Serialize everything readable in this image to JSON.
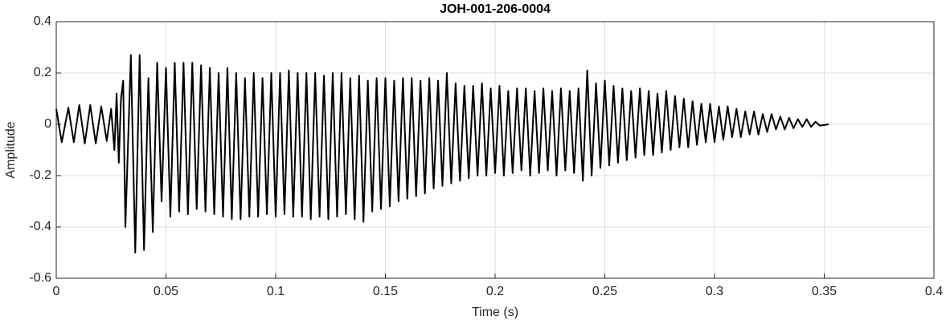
{
  "chart_data": {
    "type": "line",
    "title": "JOH-001-206-0004",
    "x_label": "Time (s)",
    "y_label": "Amplitude",
    "color": "#000000",
    "grid": true,
    "xlim": [
      0,
      0.4
    ],
    "ylim": [
      -0.6,
      0.4
    ],
    "xticks": [
      0,
      0.05,
      0.1,
      0.15,
      0.2,
      0.25,
      0.3,
      0.35,
      0.4
    ],
    "yticks": [
      -0.6,
      -0.4,
      -0.2,
      0,
      0.2,
      0.4
    ],
    "x": [
      0,
      0.0025,
      0.0055,
      0.008,
      0.0105,
      0.013,
      0.0155,
      0.018,
      0.0205,
      0.023,
      0.025,
      0.0265,
      0.0275,
      0.0285,
      0.0295,
      0.0305,
      0.0315,
      0.034,
      0.036,
      0.038,
      0.04,
      0.042,
      0.044,
      0.046,
      0.048,
      0.05,
      0.052,
      0.054,
      0.056,
      0.058,
      0.06,
      0.062,
      0.064,
      0.066,
      0.068,
      0.07,
      0.072,
      0.074,
      0.076,
      0.078,
      0.08,
      0.082,
      0.084,
      0.086,
      0.088,
      0.09,
      0.092,
      0.094,
      0.096,
      0.098,
      0.1,
      0.102,
      0.104,
      0.106,
      0.108,
      0.11,
      0.112,
      0.114,
      0.116,
      0.118,
      0.12,
      0.122,
      0.124,
      0.126,
      0.128,
      0.13,
      0.132,
      0.134,
      0.136,
      0.138,
      0.14,
      0.142,
      0.144,
      0.146,
      0.148,
      0.15,
      0.152,
      0.154,
      0.156,
      0.158,
      0.16,
      0.162,
      0.164,
      0.166,
      0.168,
      0.17,
      0.172,
      0.174,
      0.176,
      0.178,
      0.18,
      0.182,
      0.184,
      0.186,
      0.188,
      0.19,
      0.192,
      0.194,
      0.196,
      0.198,
      0.2,
      0.202,
      0.204,
      0.206,
      0.208,
      0.21,
      0.212,
      0.214,
      0.216,
      0.218,
      0.22,
      0.222,
      0.224,
      0.226,
      0.228,
      0.23,
      0.232,
      0.234,
      0.236,
      0.238,
      0.24,
      0.242,
      0.244,
      0.246,
      0.248,
      0.25,
      0.252,
      0.254,
      0.256,
      0.258,
      0.26,
      0.262,
      0.264,
      0.266,
      0.268,
      0.27,
      0.272,
      0.274,
      0.276,
      0.278,
      0.28,
      0.282,
      0.284,
      0.286,
      0.288,
      0.29,
      0.292,
      0.294,
      0.296,
      0.298,
      0.3,
      0.302,
      0.304,
      0.306,
      0.308,
      0.31,
      0.312,
      0.314,
      0.316,
      0.318,
      0.32,
      0.322,
      0.324,
      0.326,
      0.328,
      0.33,
      0.332,
      0.334,
      0.336,
      0.338,
      0.34,
      0.342,
      0.344,
      0.346,
      0.348,
      0.352
    ],
    "values": [
      0.06,
      -0.07,
      0.065,
      -0.07,
      0.075,
      -0.075,
      0.075,
      -0.075,
      0.07,
      -0.065,
      0.06,
      -0.1,
      0.12,
      -0.15,
      0.1,
      0.17,
      -0.4,
      0.27,
      -0.5,
      0.27,
      -0.49,
      0.18,
      -0.42,
      0.24,
      -0.3,
      0.22,
      -0.36,
      0.24,
      -0.34,
      0.24,
      -0.35,
      0.24,
      -0.33,
      0.23,
      -0.34,
      0.22,
      -0.35,
      0.2,
      -0.36,
      0.22,
      -0.37,
      0.2,
      -0.37,
      0.18,
      -0.36,
      0.2,
      -0.36,
      0.18,
      -0.35,
      0.2,
      -0.36,
      0.2,
      -0.35,
      0.21,
      -0.36,
      0.2,
      -0.36,
      0.2,
      -0.37,
      0.2,
      -0.36,
      0.19,
      -0.37,
      0.2,
      -0.36,
      0.2,
      -0.35,
      0.18,
      -0.37,
      0.19,
      -0.38,
      0.17,
      -0.34,
      0.18,
      -0.33,
      0.18,
      -0.32,
      0.17,
      -0.3,
      0.18,
      -0.29,
      0.18,
      -0.28,
      0.17,
      -0.27,
      0.18,
      -0.25,
      0.17,
      -0.24,
      0.2,
      -0.23,
      0.16,
      -0.22,
      0.15,
      -0.21,
      0.15,
      -0.2,
      0.16,
      -0.2,
      0.14,
      -0.19,
      0.15,
      -0.2,
      0.13,
      -0.19,
      0.14,
      -0.18,
      0.14,
      -0.2,
      0.13,
      -0.19,
      0.14,
      -0.18,
      0.13,
      -0.2,
      0.14,
      -0.18,
      0.13,
      -0.19,
      0.14,
      -0.22,
      0.21,
      -0.2,
      0.16,
      -0.17,
      0.17,
      -0.16,
      0.15,
      -0.15,
      0.14,
      -0.14,
      0.13,
      -0.13,
      0.14,
      -0.12,
      0.13,
      -0.12,
      0.12,
      -0.11,
      0.13,
      -0.1,
      0.11,
      -0.09,
      0.1,
      -0.09,
      0.09,
      -0.08,
      0.08,
      -0.07,
      0.08,
      -0.07,
      0.07,
      -0.06,
      0.07,
      -0.05,
      0.06,
      -0.05,
      0.05,
      -0.04,
      0.05,
      -0.04,
      0.04,
      -0.03,
      0.04,
      -0.02,
      0.03,
      -0.02,
      0.025,
      -0.015,
      0.02,
      -0.01,
      0.02,
      -0.01,
      0.01,
      -0.005,
      0
    ]
  }
}
